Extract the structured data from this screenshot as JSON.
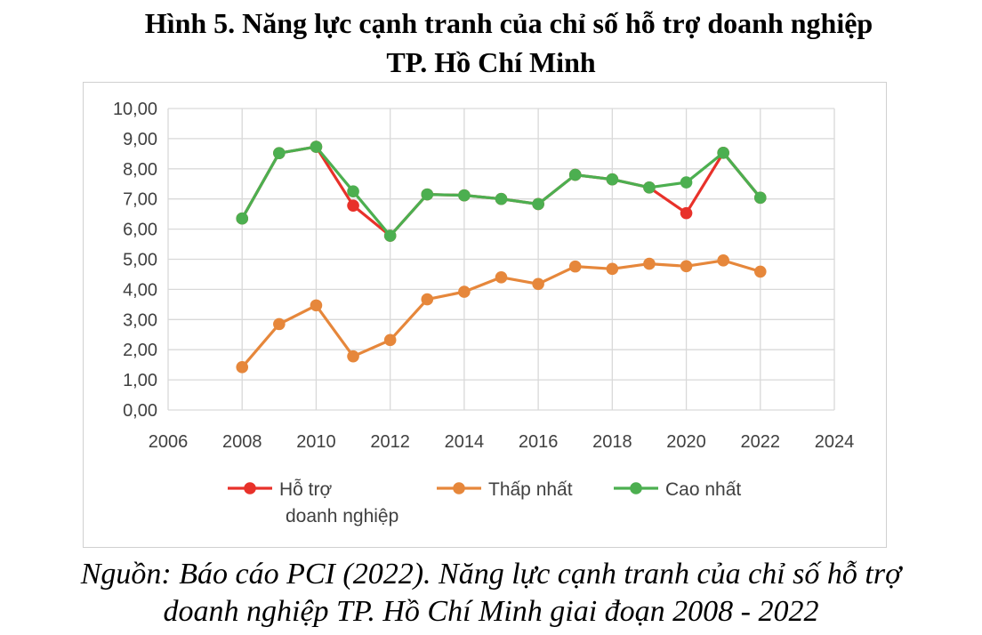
{
  "title": {
    "line1": "Hình 5. Năng lực cạnh tranh của chỉ số hỗ trợ doanh nghiệp",
    "line2": "TP. Hồ Chí Minh"
  },
  "source": {
    "line1": "Nguồn: Báo cáo PCI (2022). Năng lực cạnh tranh của chỉ số hỗ trợ",
    "line2": "doanh nghiệp TP. Hồ Chí Minh giai đoạn 2008 - 2022"
  },
  "chart_data": {
    "type": "line",
    "x": [
      2008,
      2009,
      2010,
      2011,
      2012,
      2013,
      2014,
      2015,
      2016,
      2017,
      2018,
      2019,
      2020,
      2021,
      2022
    ],
    "xlim": [
      2006,
      2024
    ],
    "x_ticks": [
      2006,
      2008,
      2010,
      2012,
      2014,
      2016,
      2018,
      2020,
      2022,
      2024
    ],
    "x_tick_labels": [
      "2006",
      "2008",
      "2010",
      "2012",
      "2014",
      "2016",
      "2018",
      "2020",
      "2022",
      "2024"
    ],
    "ylim": [
      0,
      10
    ],
    "y_ticks": [
      0,
      1,
      2,
      3,
      4,
      5,
      6,
      7,
      8,
      9,
      10
    ],
    "y_tick_labels": [
      "0,00",
      "1,00",
      "2,00",
      "3,00",
      "4,00",
      "5,00",
      "6,00",
      "7,00",
      "8,00",
      "9,00",
      "10,00"
    ],
    "grid": true,
    "legend_position": "bottom",
    "series": [
      {
        "name": "Hỗ trợ doanh nghiệp",
        "legend_lines": [
          "Hỗ trợ",
          "doanh nghiệp"
        ],
        "color": "#e8312a",
        "values": [
          6.35,
          8.52,
          8.73,
          6.78,
          5.78,
          7.15,
          7.12,
          7.0,
          6.83,
          7.8,
          7.65,
          7.38,
          6.53,
          8.53,
          7.04
        ]
      },
      {
        "name": "Thấp nhất",
        "legend_lines": [
          "Thấp nhất"
        ],
        "color": "#e6873b",
        "values": [
          1.42,
          2.85,
          3.47,
          1.78,
          2.32,
          3.67,
          3.92,
          4.4,
          4.18,
          4.76,
          4.68,
          4.85,
          4.77,
          4.96,
          4.59
        ]
      },
      {
        "name": "Cao nhất",
        "legend_lines": [
          "Cao nhất"
        ],
        "color": "#4caf50",
        "values": [
          6.35,
          8.52,
          8.73,
          7.25,
          5.78,
          7.15,
          7.12,
          7.0,
          6.83,
          7.8,
          7.65,
          7.38,
          7.55,
          8.53,
          7.04
        ]
      }
    ]
  }
}
